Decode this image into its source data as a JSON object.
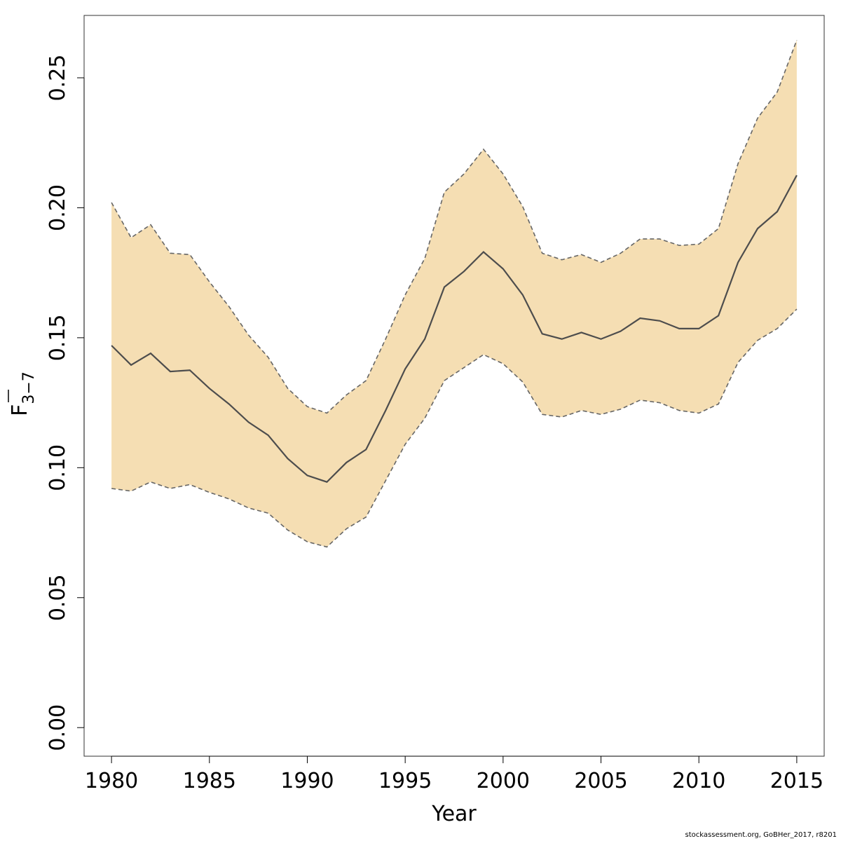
{
  "chart_data": {
    "type": "area",
    "xlabel": "Year",
    "ylabel": {
      "main": "F",
      "subscript": "3−7",
      "overbar": true
    },
    "x_ticks": [
      1980,
      1985,
      1990,
      1995,
      2000,
      2005,
      2010,
      2015
    ],
    "y_ticks": [
      "0.00",
      "0.05",
      "0.10",
      "0.15",
      "0.20",
      "0.25"
    ],
    "xlim": [
      1978.6,
      2016.4
    ],
    "ylim": [
      -0.011,
      0.274
    ],
    "grid": false,
    "colors": {
      "band": "#f5deb3",
      "line": "#4d4d4d",
      "bounds": "#666666",
      "frame": "#333333"
    },
    "x": [
      1980,
      1981,
      1982,
      1983,
      1984,
      1985,
      1986,
      1987,
      1988,
      1989,
      1990,
      1991,
      1992,
      1993,
      1994,
      1995,
      1996,
      1997,
      1998,
      1999,
      2000,
      2001,
      2002,
      2003,
      2004,
      2005,
      2006,
      2007,
      2008,
      2009,
      2010,
      2011,
      2012,
      2013,
      2014,
      2015
    ],
    "series": [
      {
        "role": "estimate",
        "style": "solid",
        "values": [
          0.147,
          0.1395,
          0.144,
          0.137,
          0.1375,
          0.1305,
          0.1245,
          0.1175,
          0.1125,
          0.1035,
          0.097,
          0.0945,
          0.102,
          0.107,
          0.122,
          0.138,
          0.1495,
          0.1695,
          0.1755,
          0.183,
          0.1765,
          0.1665,
          0.1515,
          0.1495,
          0.152,
          0.1495,
          0.1525,
          0.1575,
          0.1565,
          0.1535,
          0.1535,
          0.1585,
          0.179,
          0.192,
          0.1985,
          0.2125
        ]
      },
      {
        "role": "upper",
        "style": "dashed",
        "values": [
          0.202,
          0.1885,
          0.1935,
          0.1825,
          0.182,
          0.1715,
          0.162,
          0.151,
          0.1425,
          0.1305,
          0.1235,
          0.121,
          0.128,
          0.1335,
          0.1495,
          0.1665,
          0.1805,
          0.206,
          0.213,
          0.2225,
          0.213,
          0.2005,
          0.1825,
          0.18,
          0.182,
          0.179,
          0.1825,
          0.188,
          0.188,
          0.1855,
          0.186,
          0.192,
          0.217,
          0.2345,
          0.2445,
          0.2645
        ]
      },
      {
        "role": "lower",
        "style": "dashed",
        "values": [
          0.092,
          0.091,
          0.0945,
          0.092,
          0.0935,
          0.0905,
          0.088,
          0.0845,
          0.0825,
          0.076,
          0.0715,
          0.0695,
          0.0765,
          0.081,
          0.095,
          0.109,
          0.119,
          0.1335,
          0.1385,
          0.1435,
          0.14,
          0.133,
          0.1205,
          0.1195,
          0.122,
          0.1205,
          0.1225,
          0.126,
          0.125,
          0.122,
          0.121,
          0.1245,
          0.1405,
          0.149,
          0.1535,
          0.161
        ]
      }
    ]
  },
  "footer": {
    "text": "stockassessment.org, GoBHer_2017, r8201"
  }
}
